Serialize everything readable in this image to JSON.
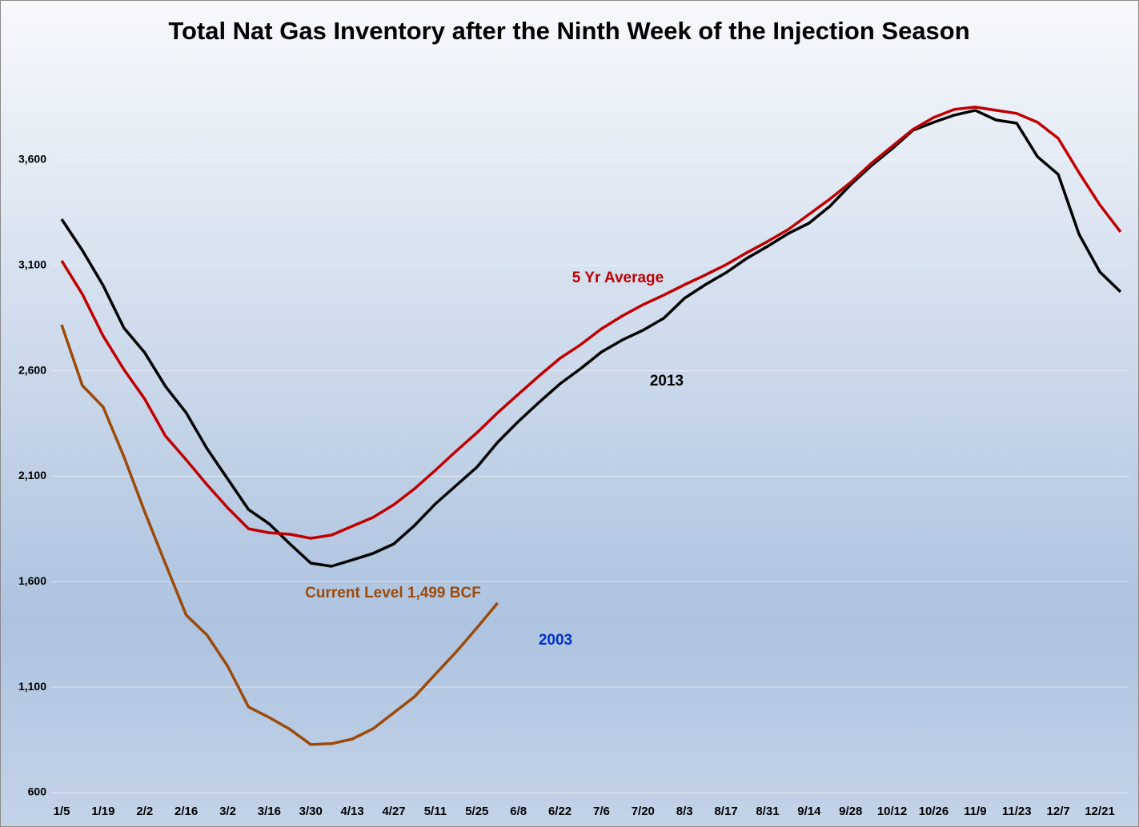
{
  "chart_data": {
    "type": "line",
    "title": "Total Nat Gas Inventory after the Ninth Week of the Injection Season",
    "categories": [
      "1/5",
      null,
      "1/19",
      null,
      "2/2",
      null,
      "2/16",
      null,
      "3/2",
      null,
      "3/16",
      null,
      "3/30",
      null,
      "4/13",
      null,
      "4/27",
      null,
      "5/11",
      null,
      "5/25",
      null,
      "6/8",
      null,
      "6/22",
      null,
      "7/6",
      null,
      "7/20",
      null,
      "8/3",
      null,
      "8/17",
      null,
      "8/31",
      null,
      "9/14",
      null,
      "9/28",
      null,
      "10/12",
      null,
      "10/26",
      null,
      "11/9",
      null,
      "11/23",
      null,
      "12/7",
      null,
      "12/21",
      null
    ],
    "series": [
      {
        "name": "2013",
        "color": "#000000",
        "label_color": "#000000",
        "values": [
          3319,
          3171,
          3004,
          2803,
          2686,
          2526,
          2401,
          2231,
          2087,
          1942,
          1874,
          1779,
          1688,
          1673,
          1703,
          1734,
          1779,
          1867,
          1969,
          2056,
          2143,
          2261,
          2360,
          2451,
          2538,
          2610,
          2689,
          2746,
          2792,
          2849,
          2944,
          3008,
          3065,
          3133,
          3190,
          3251,
          3300,
          3380,
          3482,
          3573,
          3653,
          3740,
          3778,
          3812,
          3835,
          3789,
          3774,
          3615,
          3531,
          3247,
          3069,
          2974
        ]
      },
      {
        "name": "5 Yr Average",
        "color": "#c00000",
        "label_color": "#c00000",
        "values": [
          3122,
          2963,
          2765,
          2606,
          2466,
          2291,
          2178,
          2060,
          1950,
          1851,
          1832,
          1825,
          1806,
          1821,
          1863,
          1905,
          1965,
          2041,
          2128,
          2219,
          2306,
          2401,
          2489,
          2576,
          2659,
          2724,
          2799,
          2860,
          2913,
          2959,
          3008,
          3054,
          3103,
          3160,
          3213,
          3270,
          3342,
          3414,
          3493,
          3584,
          3664,
          3744,
          3801,
          3839,
          3850,
          3835,
          3820,
          3778,
          3702,
          3539,
          3387,
          3258
        ]
      },
      {
        "name": "2003",
        "color": "#9c4a0a",
        "label_color": "#0033cc",
        "values": [
          2818,
          2530,
          2428,
          2193,
          1931,
          1685,
          1442,
          1347,
          1199,
          1006,
          956,
          900,
          828,
          832,
          854,
          903,
          979,
          1055,
          1161,
          1267,
          1381,
          1499,
          null,
          null,
          null,
          null,
          null,
          null,
          null,
          null,
          null,
          null,
          null,
          null,
          null,
          null,
          null,
          null,
          null,
          null,
          null,
          null,
          null,
          null,
          null,
          null,
          null,
          null,
          null,
          null,
          null,
          null
        ]
      }
    ],
    "annotations": [
      {
        "text": "Current Level 1,499 BCF",
        "color": "#9c4a0a"
      }
    ],
    "ylim": [
      600,
      4100
    ],
    "yticks": [
      {
        "value": 600,
        "label": "600"
      },
      {
        "value": 1100,
        "label": "1,100"
      },
      {
        "value": 1600,
        "label": "1,600"
      },
      {
        "value": 2100,
        "label": "2,100"
      },
      {
        "value": 2600,
        "label": "2,600"
      },
      {
        "value": 3100,
        "label": "3,100"
      },
      {
        "value": 3600,
        "label": "3,600"
      }
    ],
    "grid": true
  }
}
